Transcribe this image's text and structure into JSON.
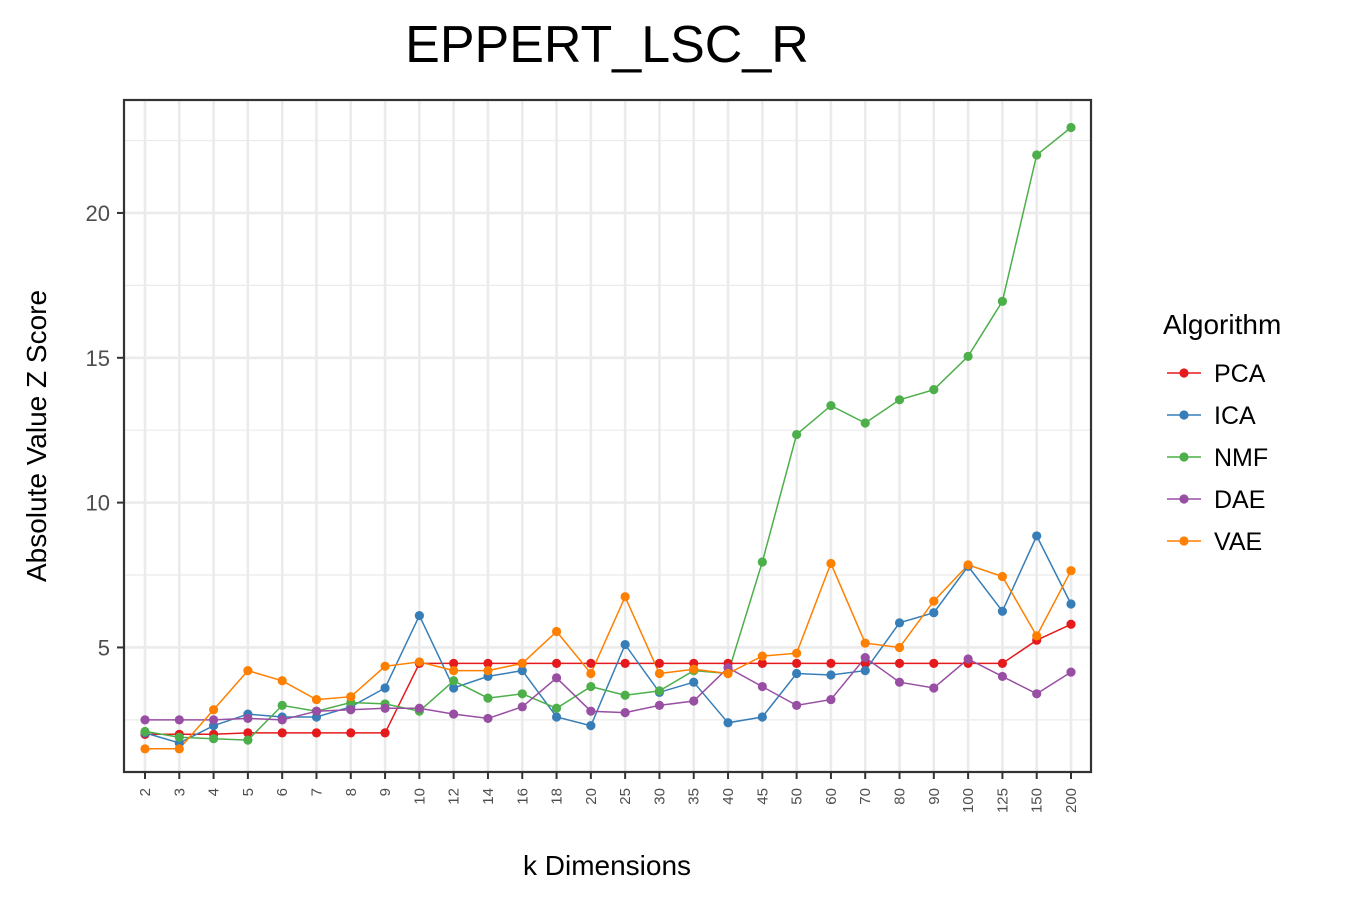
{
  "chart_data": {
    "type": "line",
    "title": "EPPERT_LSC_R",
    "xlabel": "k Dimensions",
    "ylabel": "Absolute Value Z Score",
    "categories": [
      "2",
      "3",
      "4",
      "5",
      "6",
      "7",
      "8",
      "9",
      "10",
      "12",
      "14",
      "16",
      "18",
      "20",
      "25",
      "30",
      "35",
      "40",
      "45",
      "50",
      "60",
      "70",
      "80",
      "90",
      "100",
      "125",
      "150",
      "200"
    ],
    "yticks": [
      5,
      10,
      15,
      20
    ],
    "ytick_labels": [
      "5",
      "10",
      "15",
      "20"
    ],
    "ylim": [
      0.7,
      23.9
    ],
    "grid": true,
    "legend": {
      "title": "Algorithm",
      "placement": "right"
    },
    "series": [
      {
        "name": "PCA",
        "color": "#e41a1c",
        "values": [
          2.0,
          2.0,
          2.0,
          2.05,
          2.05,
          2.05,
          2.05,
          2.05,
          4.45,
          4.45,
          4.45,
          4.45,
          4.45,
          4.45,
          4.45,
          4.45,
          4.45,
          4.45,
          4.45,
          4.45,
          4.45,
          4.45,
          4.45,
          4.45,
          4.45,
          4.45,
          5.25,
          5.8
        ]
      },
      {
        "name": "ICA",
        "color": "#377eb8",
        "values": [
          2.05,
          1.7,
          2.3,
          2.7,
          2.6,
          2.6,
          2.95,
          3.6,
          6.1,
          3.6,
          4.0,
          4.2,
          2.6,
          2.3,
          5.1,
          3.45,
          3.8,
          2.4,
          2.6,
          4.1,
          4.05,
          4.2,
          5.85,
          6.2,
          7.8,
          6.25,
          8.85,
          6.5
        ]
      },
      {
        "name": "NMF",
        "color": "#4daf4a",
        "values": [
          2.1,
          1.9,
          1.85,
          1.8,
          3.0,
          2.8,
          3.1,
          3.05,
          2.8,
          3.85,
          3.25,
          3.4,
          2.9,
          3.65,
          3.35,
          3.5,
          4.2,
          4.1,
          7.95,
          12.35,
          13.35,
          12.75,
          13.55,
          13.9,
          15.05,
          16.95,
          22.0,
          22.95
        ]
      },
      {
        "name": "DAE",
        "color": "#984ea3",
        "values": [
          2.5,
          2.5,
          2.5,
          2.55,
          2.5,
          2.8,
          2.85,
          2.9,
          2.9,
          2.7,
          2.55,
          2.95,
          3.95,
          2.8,
          2.75,
          3.0,
          3.15,
          4.3,
          3.65,
          3.0,
          3.2,
          4.65,
          3.8,
          3.6,
          4.6,
          4.0,
          3.4,
          4.15
        ]
      },
      {
        "name": "VAE",
        "color": "#ff7f00",
        "values": [
          1.5,
          1.5,
          2.85,
          4.2,
          3.85,
          3.2,
          3.3,
          4.35,
          4.5,
          4.2,
          4.2,
          4.45,
          5.55,
          4.1,
          6.75,
          4.1,
          4.25,
          4.1,
          4.7,
          4.8,
          7.9,
          5.15,
          5.0,
          6.6,
          7.85,
          7.45,
          5.4,
          7.65
        ]
      }
    ]
  }
}
